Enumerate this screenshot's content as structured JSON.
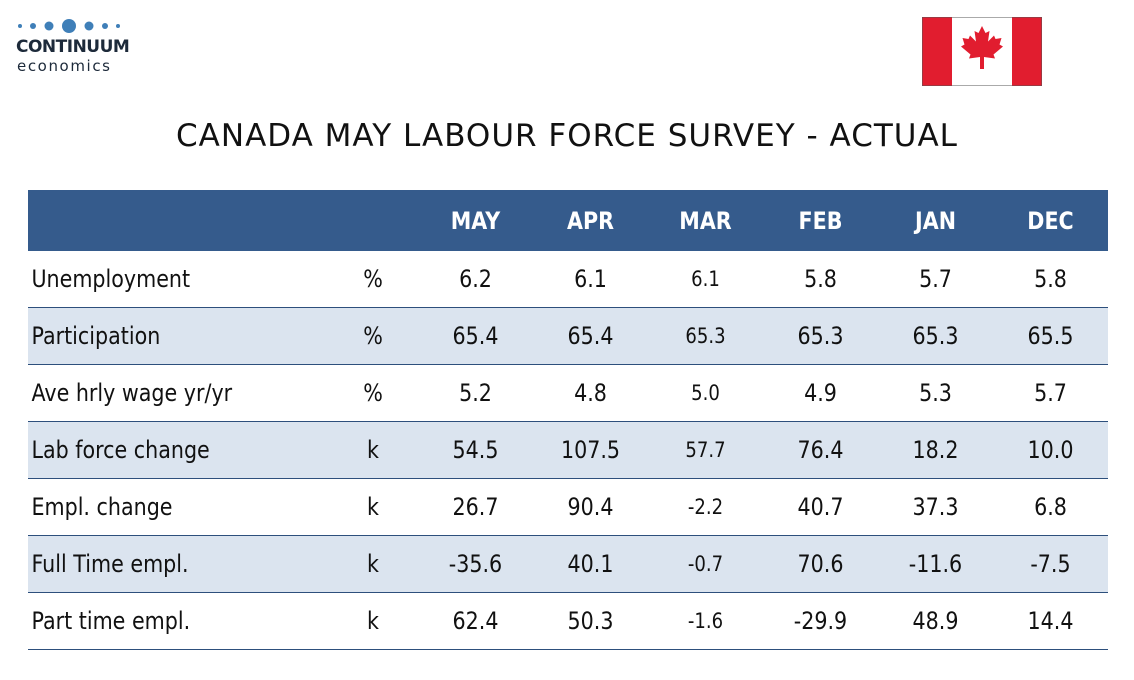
{
  "logo": {
    "name": "CONTINUUM",
    "sub": "economics"
  },
  "flag": {
    "icon": "canada-flag-icon",
    "red": "#e11d2f",
    "white": "#ffffff"
  },
  "title": "CANADA MAY LABOUR FORCE SURVEY - ACTUAL",
  "colors": {
    "header_bg": "#355b8c",
    "header_text": "#ffffff",
    "stripe": "#dbe4ef",
    "rule": "#2d4f7c"
  },
  "chart_data": {
    "type": "table",
    "columns": [
      "",
      "",
      "MAY",
      "APR",
      "MAR",
      "FEB",
      "JAN",
      "DEC"
    ],
    "rows": [
      {
        "label": "Unemployment",
        "unit": "%",
        "values": [
          "6.2",
          "6.1",
          "6.1",
          "5.8",
          "5.7",
          "5.8"
        ]
      },
      {
        "label": "Participation",
        "unit": "%",
        "values": [
          "65.4",
          "65.4",
          "65.3",
          "65.3",
          "65.3",
          "65.5"
        ]
      },
      {
        "label": "Ave hrly wage yr/yr",
        "unit": "%",
        "values": [
          "5.2",
          "4.8",
          "5.0",
          "4.9",
          "5.3",
          "5.7"
        ]
      },
      {
        "label": "Lab force change",
        "unit": "k",
        "values": [
          "54.5",
          "107.5",
          "57.7",
          "76.4",
          "18.2",
          "10.0"
        ]
      },
      {
        "label": "Empl. change",
        "unit": "k",
        "values": [
          "26.7",
          "90.4",
          "-2.2",
          "40.7",
          "37.3",
          "6.8"
        ]
      },
      {
        "label": "Full Time empl.",
        "unit": "k",
        "values": [
          "-35.6",
          "40.1",
          "-0.7",
          "70.6",
          "-11.6",
          "-7.5"
        ]
      },
      {
        "label": "Part time empl.",
        "unit": "k",
        "values": [
          "62.4",
          "50.3",
          "-1.6",
          "-29.9",
          "48.9",
          "14.4"
        ]
      }
    ]
  }
}
